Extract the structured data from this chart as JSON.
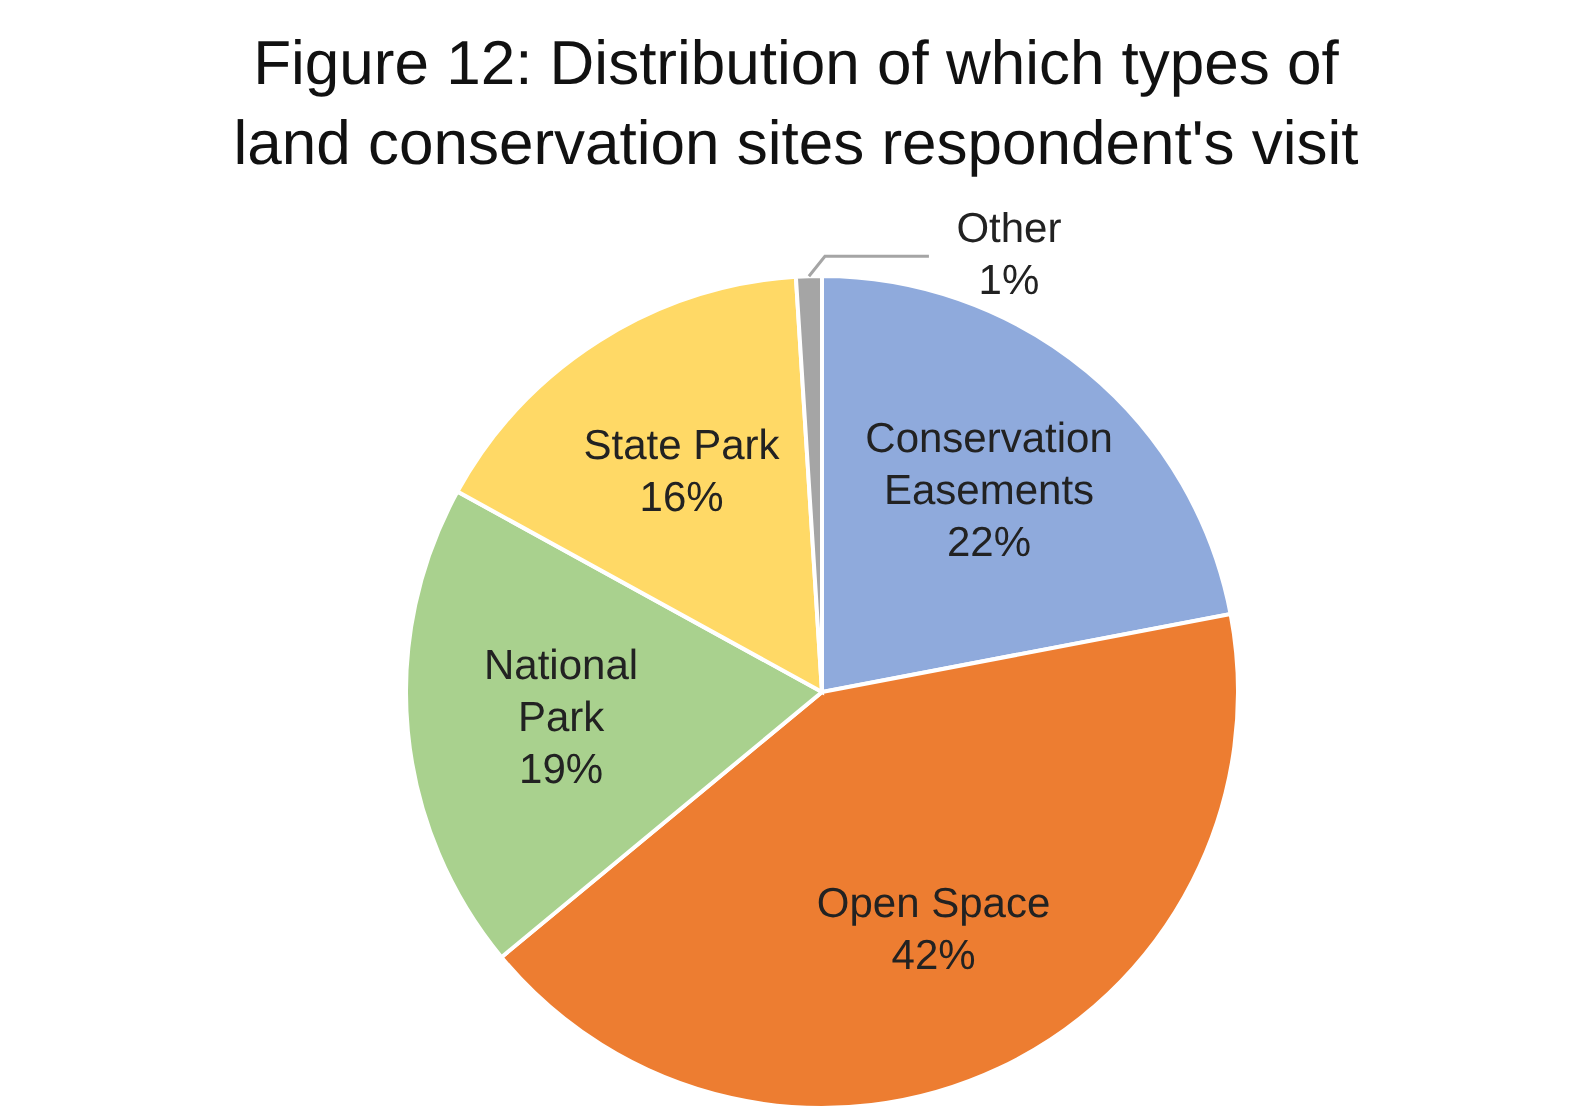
{
  "chart_data": {
    "type": "pie",
    "title": "Figure 12: Distribution of which types of land conservation sites respondent's visit",
    "categories": [
      "Conservation Easements",
      "Open Space",
      "National Park",
      "State Park",
      "Other"
    ],
    "values": [
      22,
      42,
      19,
      16,
      1
    ],
    "value_labels": [
      "22%",
      "42%",
      "19%",
      "16%",
      "1%"
    ],
    "colors": [
      "#8faadc",
      "#ed7d31",
      "#a9d18e",
      "#ffd966",
      "#a5a5a5"
    ],
    "legend": false
  }
}
